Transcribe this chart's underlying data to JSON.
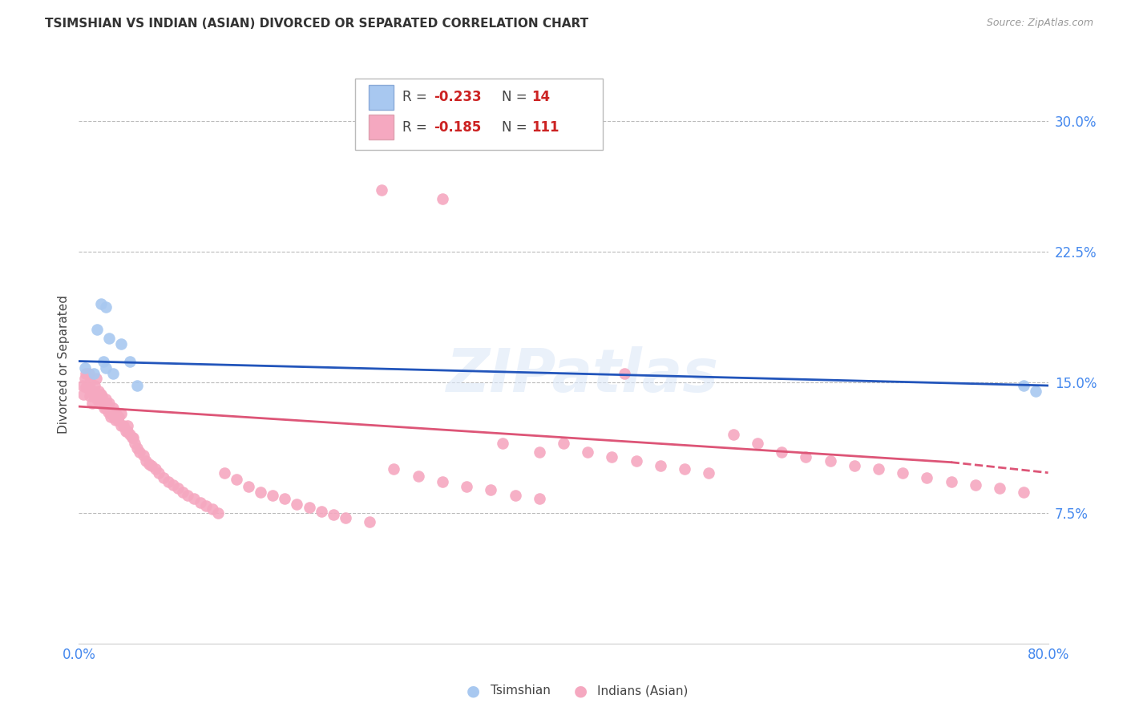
{
  "title": "TSIMSHIAN VS INDIAN (ASIAN) DIVORCED OR SEPARATED CORRELATION CHART",
  "source": "Source: ZipAtlas.com",
  "ylabel": "Divorced or Separated",
  "yticks": [
    0.075,
    0.15,
    0.225,
    0.3
  ],
  "ytick_labels": [
    "7.5%",
    "15.0%",
    "22.5%",
    "30.0%"
  ],
  "xlim": [
    0.0,
    0.8
  ],
  "ylim": [
    0.0,
    0.32
  ],
  "watermark": "ZIPatlas",
  "legend_blue_R": "-0.233",
  "legend_blue_N": "14",
  "legend_pink_R": "-0.185",
  "legend_pink_N": "111",
  "blue_color": "#A8C8F0",
  "pink_color": "#F5A8C0",
  "blue_line_color": "#2255BB",
  "pink_line_color": "#DD5577",
  "background_color": "#FFFFFF",
  "grid_color": "#BBBBBB",
  "tsimshian_x": [
    0.018,
    0.022,
    0.015,
    0.025,
    0.02,
    0.005,
    0.012,
    0.035,
    0.042,
    0.048,
    0.78,
    0.79,
    0.022,
    0.028
  ],
  "tsimshian_y": [
    0.195,
    0.193,
    0.18,
    0.175,
    0.162,
    0.158,
    0.155,
    0.172,
    0.162,
    0.148,
    0.148,
    0.145,
    0.158,
    0.155
  ],
  "indian_x": [
    0.003,
    0.004,
    0.005,
    0.006,
    0.007,
    0.008,
    0.009,
    0.01,
    0.011,
    0.012,
    0.013,
    0.014,
    0.015,
    0.016,
    0.017,
    0.018,
    0.019,
    0.02,
    0.021,
    0.022,
    0.023,
    0.024,
    0.025,
    0.026,
    0.028,
    0.029,
    0.03,
    0.032,
    0.033,
    0.035,
    0.037,
    0.039,
    0.04,
    0.042,
    0.044,
    0.046,
    0.048,
    0.05,
    0.053,
    0.055,
    0.058,
    0.06,
    0.063,
    0.066,
    0.07,
    0.074,
    0.078,
    0.082,
    0.086,
    0.09,
    0.095,
    0.1,
    0.105,
    0.11,
    0.115,
    0.12,
    0.13,
    0.14,
    0.15,
    0.16,
    0.17,
    0.18,
    0.19,
    0.2,
    0.21,
    0.22,
    0.24,
    0.26,
    0.28,
    0.3,
    0.32,
    0.34,
    0.36,
    0.38,
    0.4,
    0.42,
    0.44,
    0.46,
    0.48,
    0.5,
    0.52,
    0.54,
    0.56,
    0.58,
    0.6,
    0.62,
    0.64,
    0.66,
    0.68,
    0.7,
    0.72,
    0.74,
    0.76,
    0.78,
    0.006,
    0.009,
    0.012,
    0.015,
    0.018,
    0.022,
    0.026,
    0.03,
    0.035,
    0.04,
    0.045,
    0.35,
    0.38,
    0.25,
    0.3,
    0.45
  ],
  "indian_y": [
    0.148,
    0.143,
    0.152,
    0.147,
    0.148,
    0.155,
    0.142,
    0.145,
    0.138,
    0.142,
    0.148,
    0.152,
    0.14,
    0.145,
    0.138,
    0.143,
    0.142,
    0.138,
    0.135,
    0.14,
    0.138,
    0.133,
    0.138,
    0.132,
    0.135,
    0.13,
    0.133,
    0.128,
    0.13,
    0.132,
    0.125,
    0.122,
    0.125,
    0.12,
    0.118,
    0.115,
    0.112,
    0.11,
    0.108,
    0.105,
    0.103,
    0.102,
    0.1,
    0.098,
    0.095,
    0.093,
    0.091,
    0.089,
    0.087,
    0.085,
    0.083,
    0.081,
    0.079,
    0.077,
    0.075,
    0.098,
    0.094,
    0.09,
    0.087,
    0.085,
    0.083,
    0.08,
    0.078,
    0.076,
    0.074,
    0.072,
    0.07,
    0.1,
    0.096,
    0.093,
    0.09,
    0.088,
    0.085,
    0.083,
    0.115,
    0.11,
    0.107,
    0.105,
    0.102,
    0.1,
    0.098,
    0.12,
    0.115,
    0.11,
    0.107,
    0.105,
    0.102,
    0.1,
    0.098,
    0.095,
    0.093,
    0.091,
    0.089,
    0.087,
    0.155,
    0.15,
    0.145,
    0.142,
    0.14,
    0.135,
    0.13,
    0.128,
    0.125,
    0.122,
    0.118,
    0.115,
    0.11,
    0.26,
    0.255,
    0.155
  ],
  "indian_outlier_x": [
    0.38
  ],
  "indian_outlier_y": [
    0.255
  ]
}
